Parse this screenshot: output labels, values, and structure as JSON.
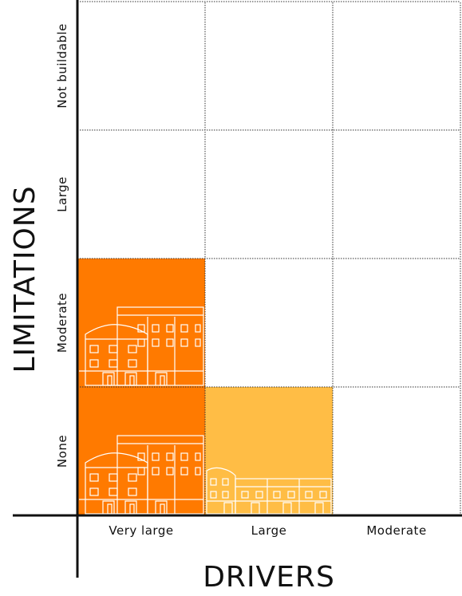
{
  "x_axis": {
    "title": "DRIVERS",
    "categories": [
      "Very large",
      "Large",
      "Moderate"
    ]
  },
  "y_axis": {
    "title": "LIMITATIONS",
    "categories": [
      "None",
      "Moderate",
      "Large",
      "Not buildable"
    ]
  },
  "colors": {
    "strong": "#ff7a00",
    "medium": "#ffbd45",
    "grid": "#333333",
    "axis": "#111111",
    "building_outline": "#ffffff"
  },
  "highlighted_cells": [
    {
      "driver": "Very large",
      "limitation": "Moderate",
      "level": "strong",
      "icon": "buildings-large-icon"
    },
    {
      "driver": "Very large",
      "limitation": "None",
      "level": "strong",
      "icon": "buildings-large-icon"
    },
    {
      "driver": "Large",
      "limitation": "None",
      "level": "medium",
      "icon": "buildings-small-icon"
    }
  ]
}
